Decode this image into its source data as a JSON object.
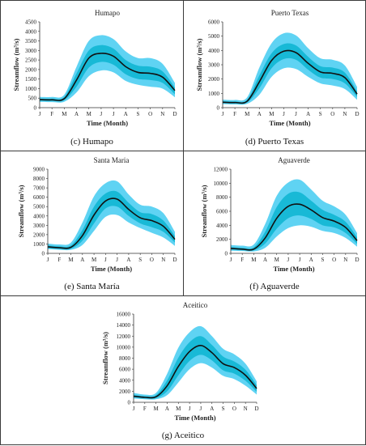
{
  "chart_data": [
    {
      "type": "area",
      "title": "Humapo",
      "caption": "(c) Humapo",
      "xlabel": "Time (Month)",
      "ylabel": "Streamflow (m³/s)",
      "categories": [
        "J",
        "F",
        "M",
        "A",
        "M",
        "J",
        "J",
        "A",
        "S",
        "O",
        "N",
        "D"
      ],
      "yticks": [
        0,
        500,
        1000,
        1500,
        2000,
        2500,
        3000,
        3500,
        4000,
        4500
      ],
      "ylim": [
        0,
        4500
      ],
      "grid": false,
      "legend": "none",
      "series": [
        {
          "role": "mean",
          "values": [
            420,
            410,
            470,
            1450,
            2600,
            2850,
            2700,
            2150,
            1850,
            1800,
            1600,
            900
          ]
        },
        {
          "role": "inner-upper",
          "values": [
            480,
            470,
            560,
            1800,
            3000,
            3280,
            3100,
            2500,
            2200,
            2150,
            1900,
            1050
          ]
        },
        {
          "role": "inner-lower",
          "values": [
            360,
            350,
            390,
            1100,
            2100,
            2400,
            2250,
            1750,
            1500,
            1450,
            1300,
            700
          ]
        },
        {
          "role": "outer-upper",
          "values": [
            560,
            560,
            680,
            2150,
            3500,
            3800,
            3600,
            2950,
            2600,
            2600,
            2300,
            1300
          ]
        },
        {
          "role": "outer-lower",
          "values": [
            300,
            290,
            310,
            800,
            1650,
            1950,
            1850,
            1400,
            1200,
            1100,
            1000,
            550
          ]
        }
      ],
      "colors": {
        "outer": "#5fd3f3",
        "inner": "#18b9d6",
        "mean": "#111111"
      }
    },
    {
      "type": "area",
      "title": "Puerto Texas",
      "caption": "(d) Puerto Texas",
      "xlabel": "Time (Month)",
      "ylabel": "Streamflow (m³/s)",
      "categories": [
        "J",
        "F",
        "M",
        "A",
        "M",
        "J",
        "J",
        "A",
        "S",
        "O",
        "N",
        "D"
      ],
      "yticks": [
        0,
        1000,
        2000,
        3000,
        4000,
        5000,
        6000
      ],
      "ylim": [
        0,
        6000
      ],
      "grid": false,
      "legend": "none",
      "series": [
        {
          "role": "mean",
          "values": [
            380,
            360,
            450,
            1800,
            3300,
            3950,
            3850,
            3100,
            2500,
            2400,
            2100,
            950
          ]
        },
        {
          "role": "inner-upper",
          "values": [
            450,
            430,
            550,
            2250,
            3800,
            4450,
            4350,
            3550,
            2900,
            2800,
            2450,
            1150
          ]
        },
        {
          "role": "inner-lower",
          "values": [
            310,
            290,
            360,
            1350,
            2750,
            3400,
            3350,
            2650,
            2100,
            2000,
            1700,
            750
          ]
        },
        {
          "role": "outer-upper",
          "values": [
            560,
            540,
            720,
            2800,
            4500,
            5200,
            5050,
            4150,
            3450,
            3350,
            2950,
            1450
          ]
        },
        {
          "role": "outer-lower",
          "values": [
            250,
            230,
            270,
            900,
            2150,
            2750,
            2700,
            2150,
            1700,
            1550,
            1300,
            550
          ]
        }
      ],
      "colors": {
        "outer": "#5fd3f3",
        "inner": "#18b9d6",
        "mean": "#111111"
      }
    },
    {
      "type": "area",
      "title": "Santa Maria",
      "caption": "(e) Santa María",
      "xlabel": "Time (Month)",
      "ylabel": "Streamflow (m³/s)",
      "categories": [
        "J",
        "F",
        "M",
        "A",
        "M",
        "J",
        "J",
        "A",
        "S",
        "O",
        "N",
        "D"
      ],
      "yticks": [
        0,
        1000,
        2000,
        3000,
        4000,
        5000,
        6000,
        7000,
        8000,
        9000
      ],
      "ylim": [
        0,
        9000
      ],
      "grid": false,
      "legend": "none",
      "series": [
        {
          "role": "mean",
          "values": [
            700,
            600,
            650,
            1900,
            4100,
            5600,
            5800,
            4700,
            3800,
            3500,
            2900,
            1500
          ]
        },
        {
          "role": "inner-upper",
          "values": [
            850,
            750,
            850,
            2500,
            5000,
            6400,
            6600,
            5400,
            4400,
            4200,
            3500,
            1850
          ]
        },
        {
          "role": "inner-lower",
          "values": [
            560,
            480,
            500,
            1350,
            3200,
            4800,
            5000,
            4000,
            3200,
            2800,
            2300,
            1150
          ]
        },
        {
          "role": "outer-upper",
          "values": [
            1050,
            950,
            1150,
            3300,
            6100,
            7500,
            7700,
            6300,
            5200,
            5000,
            4300,
            2300
          ]
        },
        {
          "role": "outer-lower",
          "values": [
            450,
            380,
            380,
            900,
            2400,
            3900,
            4100,
            3300,
            2700,
            2200,
            1700,
            800
          ]
        }
      ],
      "colors": {
        "outer": "#5fd3f3",
        "inner": "#18b9d6",
        "mean": "#111111"
      }
    },
    {
      "type": "area",
      "title": "Aguaverde",
      "caption": "(f) Aguaverde",
      "xlabel": "Time (Month)",
      "ylabel": "Streamflow (m³/s)",
      "categories": [
        "J",
        "F",
        "M",
        "A",
        "M",
        "J",
        "J",
        "A",
        "S",
        "O",
        "N",
        "D"
      ],
      "yticks": [
        0,
        2000,
        4000,
        6000,
        8000,
        10000,
        12000
      ],
      "ylim": [
        0,
        12000
      ],
      "grid": false,
      "legend": "none",
      "series": [
        {
          "role": "mean",
          "values": [
            700,
            600,
            600,
            2200,
            5000,
            6700,
            7000,
            6200,
            5100,
            4600,
            3700,
            1800
          ]
        },
        {
          "role": "inner-upper",
          "values": [
            900,
            800,
            850,
            3100,
            6600,
            8500,
            8700,
            7500,
            6200,
            5500,
            4500,
            2300
          ]
        },
        {
          "role": "inner-lower",
          "values": [
            520,
            450,
            420,
            1400,
            3500,
            5000,
            5400,
            4900,
            4000,
            3700,
            2900,
            1350
          ]
        },
        {
          "role": "outer-upper",
          "values": [
            1200,
            1100,
            1250,
            4200,
            8200,
            10100,
            10500,
            9100,
            7500,
            6700,
            5500,
            2900
          ]
        },
        {
          "role": "outer-lower",
          "values": [
            380,
            330,
            280,
            800,
            2400,
            3600,
            4000,
            3800,
            3200,
            2900,
            2200,
            950
          ]
        }
      ],
      "colors": {
        "outer": "#5fd3f3",
        "inner": "#18b9d6",
        "mean": "#111111"
      }
    },
    {
      "type": "area",
      "title": "Aceitico",
      "caption": "(g) Aceitico",
      "xlabel": "Time (Month)",
      "ylabel": "Streamflow (m³/s)",
      "categories": [
        "J",
        "F",
        "M",
        "A",
        "M",
        "J",
        "J",
        "A",
        "S",
        "O",
        "N",
        "D"
      ],
      "yticks": [
        0,
        2000,
        4000,
        6000,
        8000,
        10000,
        12000,
        14000,
        16000
      ],
      "ylim": [
        0,
        16000
      ],
      "grid": false,
      "legend": "none",
      "series": [
        {
          "role": "mean",
          "values": [
            1100,
            900,
            1000,
            3000,
            6500,
            9200,
            10300,
            9000,
            7000,
            6300,
            4900,
            2500
          ]
        },
        {
          "role": "inner-upper",
          "values": [
            1350,
            1100,
            1300,
            4000,
            8100,
            10900,
            12000,
            10400,
            8300,
            7400,
            5900,
            3100
          ]
        },
        {
          "role": "inner-lower",
          "values": [
            900,
            720,
            760,
            2000,
            4900,
            7500,
            8600,
            7600,
            5800,
            5200,
            3900,
            1900
          ]
        },
        {
          "role": "outer-upper",
          "values": [
            1700,
            1400,
            1700,
            5200,
            9900,
            12700,
            13800,
            12000,
            9700,
            8700,
            7000,
            3800
          ]
        },
        {
          "role": "outer-lower",
          "values": [
            700,
            550,
            550,
            1300,
            3600,
            6000,
            7100,
            6300,
            4800,
            4200,
            3000,
            1400
          ]
        }
      ],
      "colors": {
        "outer": "#5fd3f3",
        "inner": "#18b9d6",
        "mean": "#111111"
      }
    }
  ]
}
